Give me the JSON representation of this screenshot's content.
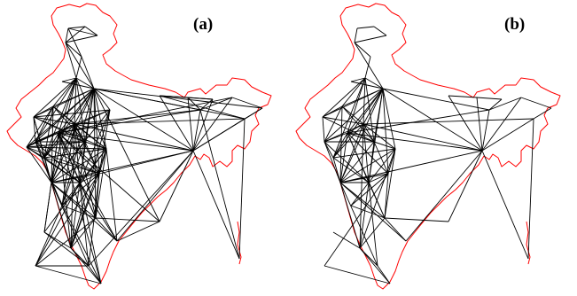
{
  "colors": {
    "border": "#ff0000",
    "edges": "#000000",
    "background": "#ffffff"
  },
  "panels": [
    {
      "label": "(a)",
      "edges": [
        [
          3,
          0
        ],
        [
          0,
          1
        ],
        [
          0,
          2
        ],
        [
          0,
          4
        ],
        [
          1,
          2
        ],
        [
          3,
          1
        ],
        [
          3,
          2
        ],
        [
          3,
          4
        ],
        [
          5,
          4
        ],
        [
          5,
          6
        ],
        [
          5,
          3
        ],
        [
          5,
          7
        ],
        [
          5,
          8
        ],
        [
          5,
          9
        ],
        [
          5,
          10
        ],
        [
          5,
          11
        ],
        [
          5,
          12
        ],
        [
          5,
          14
        ],
        [
          5,
          16
        ],
        [
          5,
          17
        ],
        [
          5,
          18
        ],
        [
          7,
          3
        ],
        [
          7,
          6
        ],
        [
          7,
          4
        ],
        [
          7,
          8
        ],
        [
          7,
          9
        ],
        [
          7,
          10
        ],
        [
          7,
          11
        ],
        [
          7,
          12
        ],
        [
          7,
          13
        ],
        [
          7,
          14
        ],
        [
          7,
          15
        ],
        [
          7,
          16
        ],
        [
          7,
          17
        ],
        [
          7,
          18
        ],
        [
          7,
          19
        ],
        [
          7,
          20
        ],
        [
          7,
          21
        ],
        [
          7,
          22
        ],
        [
          11,
          10
        ],
        [
          11,
          12
        ],
        [
          11,
          13
        ],
        [
          11,
          14
        ],
        [
          11,
          15
        ],
        [
          11,
          16
        ],
        [
          11,
          17
        ],
        [
          11,
          18
        ],
        [
          11,
          19
        ],
        [
          11,
          20
        ],
        [
          11,
          22
        ],
        [
          11,
          23
        ],
        [
          11,
          24
        ],
        [
          11,
          25
        ],
        [
          11,
          27
        ],
        [
          10,
          8
        ],
        [
          10,
          12
        ],
        [
          10,
          13
        ],
        [
          10,
          14
        ],
        [
          10,
          15
        ],
        [
          10,
          16
        ],
        [
          10,
          17
        ],
        [
          10,
          18
        ],
        [
          10,
          19
        ],
        [
          10,
          20
        ],
        [
          10,
          21
        ],
        [
          10,
          22
        ],
        [
          10,
          25
        ],
        [
          9,
          8
        ],
        [
          9,
          16
        ],
        [
          9,
          17
        ],
        [
          9,
          18
        ],
        [
          9,
          10
        ],
        [
          9,
          12
        ],
        [
          9,
          14
        ],
        [
          9,
          15
        ],
        [
          8,
          12
        ],
        [
          8,
          13
        ],
        [
          8,
          14
        ],
        [
          8,
          16
        ],
        [
          8,
          17
        ],
        [
          8,
          18
        ],
        [
          12,
          13
        ],
        [
          12,
          14
        ],
        [
          12,
          16
        ],
        [
          12,
          18
        ],
        [
          12,
          19
        ],
        [
          12,
          20
        ],
        [
          12,
          21
        ],
        [
          13,
          14
        ],
        [
          13,
          16
        ],
        [
          13,
          17
        ],
        [
          13,
          18
        ],
        [
          13,
          19
        ],
        [
          13,
          20
        ],
        [
          14,
          17
        ],
        [
          14,
          18
        ],
        [
          14,
          19
        ],
        [
          14,
          20
        ],
        [
          15,
          18
        ],
        [
          15,
          19
        ],
        [
          15,
          20
        ],
        [
          15,
          25
        ],
        [
          16,
          17
        ],
        [
          16,
          18
        ],
        [
          16,
          19
        ],
        [
          16,
          20
        ],
        [
          16,
          21
        ],
        [
          17,
          18
        ],
        [
          17,
          19
        ],
        [
          17,
          20
        ],
        [
          17,
          22
        ],
        [
          17,
          23
        ],
        [
          17,
          24
        ],
        [
          17,
          25
        ],
        [
          18,
          19
        ],
        [
          18,
          20
        ],
        [
          18,
          21
        ],
        [
          18,
          22
        ],
        [
          18,
          23
        ],
        [
          18,
          24
        ],
        [
          18,
          25
        ],
        [
          18,
          26
        ],
        [
          18,
          27
        ],
        [
          19,
          20
        ],
        [
          19,
          21
        ],
        [
          19,
          22
        ],
        [
          19,
          23
        ],
        [
          19,
          25
        ],
        [
          19,
          26
        ],
        [
          19,
          27
        ],
        [
          19,
          28
        ],
        [
          20,
          21
        ],
        [
          20,
          22
        ],
        [
          20,
          25
        ],
        [
          20,
          26
        ],
        [
          20,
          28
        ],
        [
          21,
          22
        ],
        [
          21,
          28
        ],
        [
          22,
          23
        ],
        [
          22,
          25
        ],
        [
          22,
          28
        ],
        [
          24,
          25
        ],
        [
          24,
          26
        ],
        [
          25,
          26
        ],
        [
          25,
          27
        ],
        [
          26,
          27
        ],
        [
          27,
          28
        ],
        [
          26,
          28
        ],
        [
          7,
          29
        ],
        [
          10,
          29
        ],
        [
          11,
          29
        ],
        [
          18,
          29
        ],
        [
          20,
          29
        ],
        [
          29,
          30
        ],
        [
          29,
          31
        ],
        [
          29,
          32
        ],
        [
          29,
          33
        ],
        [
          29,
          34
        ],
        [
          29,
          35
        ],
        [
          29,
          36
        ],
        [
          29,
          37
        ],
        [
          7,
          33
        ],
        [
          7,
          35
        ],
        [
          7,
          36
        ],
        [
          11,
          33
        ],
        [
          11,
          34
        ],
        [
          10,
          33
        ],
        [
          10,
          36
        ],
        [
          30,
          31
        ],
        [
          30,
          32
        ],
        [
          31,
          32
        ],
        [
          31,
          33
        ],
        [
          32,
          33
        ],
        [
          33,
          34
        ],
        [
          34,
          35
        ],
        [
          35,
          36
        ],
        [
          30,
          36
        ],
        [
          36,
          37
        ],
        [
          33,
          37
        ],
        [
          29,
          38
        ],
        [
          38,
          22
        ],
        [
          29,
          23
        ],
        [
          29,
          26
        ],
        [
          7,
          38
        ],
        [
          11,
          38
        ],
        [
          38,
          23
        ]
      ]
    },
    {
      "label": "(b)",
      "edges": [
        [
          3,
          0
        ],
        [
          0,
          1
        ],
        [
          1,
          2
        ],
        [
          3,
          2
        ],
        [
          3,
          4
        ],
        [
          5,
          4
        ],
        [
          5,
          6
        ],
        [
          5,
          7
        ],
        [
          5,
          8
        ],
        [
          5,
          9
        ],
        [
          5,
          10
        ],
        [
          5,
          11
        ],
        [
          5,
          14
        ],
        [
          5,
          16
        ],
        [
          7,
          3
        ],
        [
          7,
          6
        ],
        [
          7,
          8
        ],
        [
          7,
          9
        ],
        [
          7,
          10
        ],
        [
          7,
          11
        ],
        [
          7,
          12
        ],
        [
          7,
          14
        ],
        [
          7,
          16
        ],
        [
          7,
          17
        ],
        [
          7,
          18
        ],
        [
          7,
          19
        ],
        [
          7,
          20
        ],
        [
          11,
          10
        ],
        [
          11,
          12
        ],
        [
          11,
          14
        ],
        [
          11,
          16
        ],
        [
          11,
          17
        ],
        [
          11,
          18
        ],
        [
          11,
          19
        ],
        [
          11,
          20
        ],
        [
          11,
          22
        ],
        [
          10,
          8
        ],
        [
          10,
          12
        ],
        [
          10,
          14
        ],
        [
          10,
          16
        ],
        [
          10,
          17
        ],
        [
          10,
          18
        ],
        [
          10,
          19
        ],
        [
          10,
          25
        ],
        [
          9,
          8
        ],
        [
          9,
          16
        ],
        [
          9,
          10
        ],
        [
          9,
          12
        ],
        [
          8,
          12
        ],
        [
          8,
          16
        ],
        [
          8,
          18
        ],
        [
          12,
          14
        ],
        [
          12,
          16
        ],
        [
          12,
          18
        ],
        [
          12,
          19
        ],
        [
          14,
          17
        ],
        [
          14,
          18
        ],
        [
          14,
          19
        ],
        [
          16,
          17
        ],
        [
          16,
          18
        ],
        [
          16,
          19
        ],
        [
          16,
          20
        ],
        [
          17,
          18
        ],
        [
          17,
          19
        ],
        [
          17,
          20
        ],
        [
          17,
          22
        ],
        [
          17,
          25
        ],
        [
          18,
          19
        ],
        [
          18,
          20
        ],
        [
          18,
          22
        ],
        [
          18,
          23
        ],
        [
          18,
          25
        ],
        [
          18,
          26
        ],
        [
          19,
          20
        ],
        [
          19,
          21
        ],
        [
          19,
          22
        ],
        [
          19,
          25
        ],
        [
          19,
          26
        ],
        [
          20,
          21
        ],
        [
          20,
          22
        ],
        [
          20,
          28
        ],
        [
          21,
          22
        ],
        [
          22,
          23
        ],
        [
          22,
          25
        ],
        [
          24,
          25
        ],
        [
          25,
          26
        ],
        [
          25,
          27
        ],
        [
          26,
          27
        ],
        [
          27,
          28
        ],
        [
          7,
          29
        ],
        [
          10,
          29
        ],
        [
          11,
          29
        ],
        [
          18,
          29
        ],
        [
          29,
          30
        ],
        [
          29,
          31
        ],
        [
          29,
          33
        ],
        [
          29,
          34
        ],
        [
          29,
          36
        ],
        [
          29,
          37
        ],
        [
          7,
          33
        ],
        [
          11,
          33
        ],
        [
          10,
          36
        ],
        [
          30,
          31
        ],
        [
          31,
          32
        ],
        [
          32,
          33
        ],
        [
          33,
          34
        ],
        [
          34,
          35
        ],
        [
          35,
          36
        ],
        [
          36,
          37
        ],
        [
          29,
          38
        ],
        [
          38,
          22
        ],
        [
          29,
          23
        ]
      ]
    }
  ]
}
